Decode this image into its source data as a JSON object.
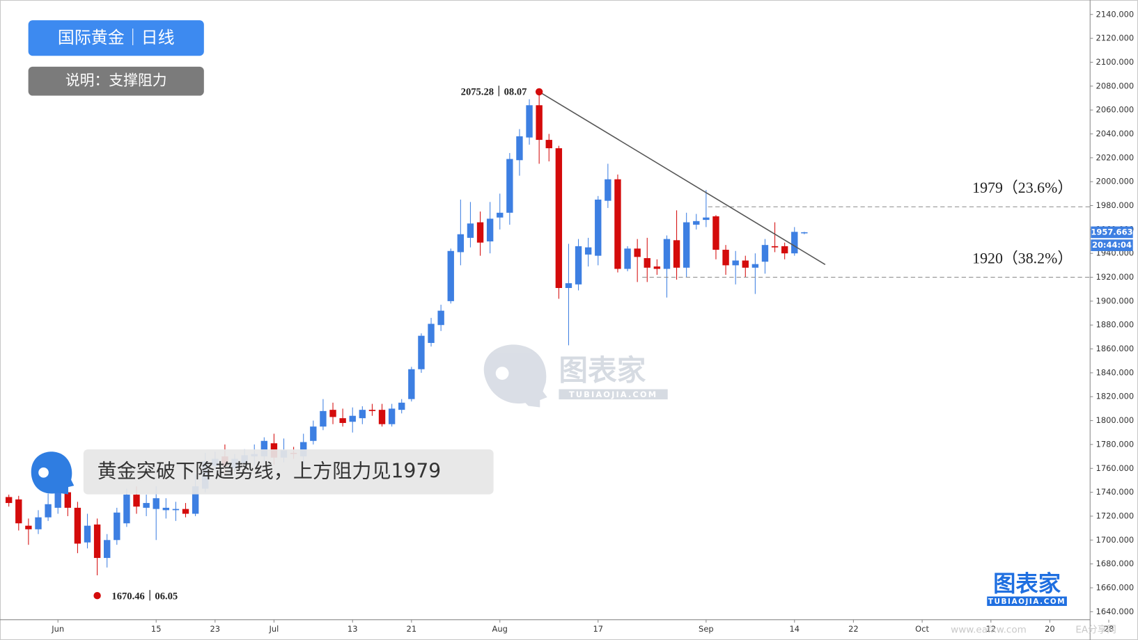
{
  "chart_data": {
    "type": "candlestick",
    "title": "国际黄金｜日线",
    "subtitle": "说明：支撑阻力",
    "callout": "黄金突破下降趋势线，上方阻力见1979",
    "up_color": "#3d7fe2",
    "down_color": "#d40b0b",
    "series": [
      {
        "open": [
          1736,
          1734,
          1712,
          1709,
          1719,
          1727,
          1740,
          1727,
          1698,
          1713,
          1685,
          1700,
          1714,
          1738,
          1727,
          1726,
          1725,
          1725,
          1726,
          1722,
          1743,
          1762,
          1770,
          1760,
          1764,
          1770,
          1770,
          1781,
          1769,
          1773,
          1770,
          1783,
          1795,
          1809,
          1802,
          1799,
          1802,
          1809,
          1809,
          1797,
          1809,
          1818,
          1843,
          1865,
          1880,
          1900,
          1941,
          1953,
          1966,
          1950,
          1970,
          1974,
          2018,
          2037,
          2064,
          2035,
          2028,
          1911,
          1914,
          1939,
          1938,
          1984,
          2002,
          1927,
          1944,
          1936,
          1929,
          1927,
          1951,
          1928,
          1964,
          1968,
          1971,
          1943,
          1930,
          1934,
          1928,
          1933,
          1946,
          1946,
          1940,
          1957
        ],
        "high": [
          1738,
          1737,
          1718,
          1725,
          1740,
          1746,
          1745,
          1732,
          1722,
          1718,
          1705,
          1727,
          1743,
          1745,
          1738,
          1745,
          1735,
          1732,
          1731,
          1755,
          1773,
          1774,
          1780,
          1772,
          1776,
          1780,
          1786,
          1789,
          1785,
          1778,
          1789,
          1800,
          1818,
          1815,
          1810,
          1811,
          1812,
          1814,
          1814,
          1814,
          1818,
          1845,
          1873,
          1886,
          1897,
          1944,
          1985,
          1983,
          1975,
          1983,
          1990,
          2024,
          2044,
          2069,
          2075.28,
          2040,
          2030,
          1948,
          1952,
          1953,
          1988,
          2015,
          2006,
          1946,
          1952,
          1953,
          1935,
          1955,
          1976,
          1974,
          1973,
          1993,
          1972,
          1947,
          1942,
          1938,
          1940,
          1952,
          1966,
          1949,
          1962,
          1958
        ],
        "low": [
          1728,
          1708,
          1696,
          1705,
          1716,
          1722,
          1720,
          1689,
          1693,
          1670.46,
          1677,
          1696,
          1711,
          1722,
          1720,
          1700,
          1718,
          1716,
          1719,
          1720,
          1740,
          1758,
          1755,
          1757,
          1760,
          1762,
          1765,
          1763,
          1765,
          1768,
          1764,
          1780,
          1792,
          1797,
          1795,
          1790,
          1797,
          1804,
          1795,
          1795,
          1806,
          1816,
          1840,
          1862,
          1875,
          1898,
          1930,
          1945,
          1938,
          1940,
          1960,
          1964,
          2005,
          2031,
          2015,
          2017,
          1902,
          1863,
          1909,
          1929,
          1930,
          1978,
          1924,
          1925,
          1916,
          1916,
          1922,
          1903,
          1918,
          1920,
          1960,
          1962,
          1935,
          1922,
          1914,
          1920,
          1906,
          1923,
          1941,
          1935,
          1938,
          1956
        ],
        "close": [
          1731,
          1714,
          1709,
          1719,
          1730,
          1740,
          1727,
          1697,
          1712,
          1685,
          1700,
          1723,
          1738,
          1728,
          1731,
          1735,
          1727,
          1726,
          1722,
          1745,
          1766,
          1768,
          1762,
          1768,
          1771,
          1772,
          1783,
          1769,
          1775,
          1772,
          1782,
          1795,
          1808,
          1803,
          1798,
          1804,
          1809,
          1808,
          1797,
          1810,
          1815,
          1843,
          1871,
          1881,
          1892,
          1942,
          1956,
          1965,
          1949,
          1969,
          1974,
          2019,
          2038,
          2064,
          2035,
          2028,
          1911,
          1915,
          1946,
          1945,
          1985,
          2002,
          1927,
          1944,
          1937,
          1928,
          1927,
          1952,
          1928,
          1966,
          1967,
          1970,
          1943,
          1930,
          1934,
          1928,
          1931,
          1947,
          1945,
          1940,
          1958,
          1957.663
        ]
      }
    ],
    "xlim": [
      -0.9,
      110.1
    ],
    "xticks": [
      {
        "value": 5,
        "label": "Jun"
      },
      {
        "value": 15,
        "label": "15"
      },
      {
        "value": 21,
        "label": "23"
      },
      {
        "value": 27,
        "label": "Jul"
      },
      {
        "value": 35,
        "label": "13"
      },
      {
        "value": 41,
        "label": "21"
      },
      {
        "value": 50,
        "label": "Aug"
      },
      {
        "value": 60,
        "label": "17"
      },
      {
        "value": 71,
        "label": "Sep"
      },
      {
        "value": 80,
        "label": "14"
      },
      {
        "value": 86,
        "label": "22"
      },
      {
        "value": 93,
        "label": "Oct"
      },
      {
        "value": 100,
        "label": "12"
      },
      {
        "value": 106,
        "label": "20"
      },
      {
        "value": 112,
        "label": "28"
      }
    ],
    "ylim": [
      1633.3,
      2152.1
    ],
    "yticks": [
      {
        "value": 1640,
        "label": "1640.000"
      },
      {
        "value": 1660,
        "label": "1660.000"
      },
      {
        "value": 1680,
        "label": "1680.000"
      },
      {
        "value": 1700,
        "label": "1700.000"
      },
      {
        "value": 1720,
        "label": "1720.000"
      },
      {
        "value": 1740,
        "label": "1740.000"
      },
      {
        "value": 1760,
        "label": "1760.000"
      },
      {
        "value": 1780,
        "label": "1780.000"
      },
      {
        "value": 1800,
        "label": "1800.000"
      },
      {
        "value": 1820,
        "label": "1820.000"
      },
      {
        "value": 1840,
        "label": "1840.000"
      },
      {
        "value": 1860,
        "label": "1860.000"
      },
      {
        "value": 1880,
        "label": "1880.000"
      },
      {
        "value": 1900,
        "label": "1900.000"
      },
      {
        "value": 1920,
        "label": "1920.000"
      },
      {
        "value": 1940,
        "label": "1940.000"
      },
      {
        "value": 1960,
        "label": "1960.000"
      },
      {
        "value": 1980,
        "label": "1980.000"
      },
      {
        "value": 2000,
        "label": "2000.000"
      },
      {
        "value": 2020,
        "label": "2020.000"
      },
      {
        "value": 2040,
        "label": "2040.000"
      },
      {
        "value": 2060,
        "label": "2060.000"
      },
      {
        "value": 2080,
        "label": "2080.000"
      },
      {
        "value": 2100,
        "label": "2100.000"
      },
      {
        "value": 2120,
        "label": "2120.000"
      },
      {
        "value": 2140,
        "label": "2140.000"
      }
    ],
    "extremes": [
      {
        "value": 2075.28,
        "label": "2075.28｜08.07",
        "color": "#d40b0b"
      },
      {
        "value": 1670.46,
        "label": "1670.46｜06.05",
        "color": "#d40b0b"
      }
    ],
    "levels": [
      {
        "value": 1979,
        "label": "1979（23.6%）"
      },
      {
        "value": 1920,
        "label": "1920（38.2%）"
      }
    ],
    "last_price": {
      "value": 1957.663,
      "label": "1957.663"
    },
    "countdown": "20:44:04",
    "watermark": {
      "name": "图表家",
      "site": "TUBIAOJIA.COM"
    },
    "footer": [
      "www.eafxw.com",
      "EA分享网"
    ]
  }
}
